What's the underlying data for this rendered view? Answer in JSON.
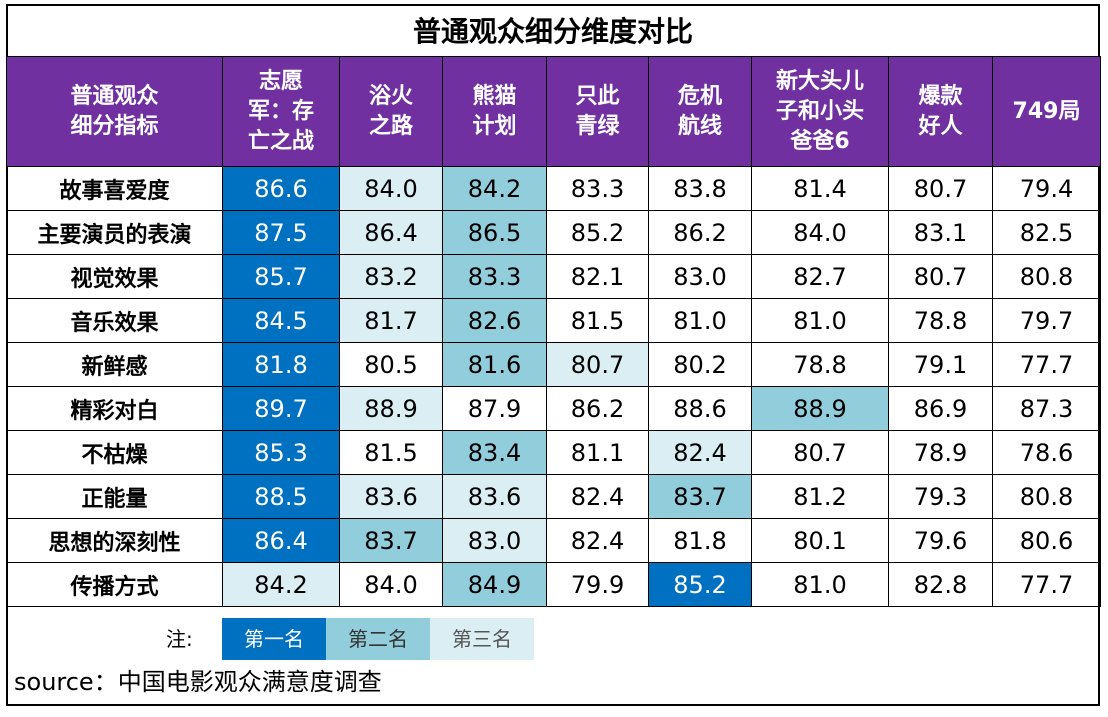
{
  "chart_data": {
    "type": "table",
    "title": "普通观众细分维度对比",
    "corner_header": "普通观众\n细分指标",
    "columns": [
      "志愿\n军：存\n亡之战",
      "浴火\n之路",
      "熊猫\n计划",
      "只此\n青绿",
      "危机\n航线",
      "新大头儿\n子和小头\n爸爸6",
      "爆款\n好人",
      "749局"
    ],
    "rows": [
      {
        "label": "故事喜爱度",
        "values": [
          "86.6",
          "84.0",
          "84.2",
          "83.3",
          "83.8",
          "81.4",
          "80.7",
          "79.4"
        ],
        "ranks": [
          1,
          3,
          2,
          0,
          0,
          0,
          0,
          0
        ]
      },
      {
        "label": "主要演员的表演",
        "values": [
          "87.5",
          "86.4",
          "86.5",
          "85.2",
          "86.2",
          "84.0",
          "83.1",
          "82.5"
        ],
        "ranks": [
          1,
          3,
          2,
          0,
          0,
          0,
          0,
          0
        ]
      },
      {
        "label": "视觉效果",
        "values": [
          "85.7",
          "83.2",
          "83.3",
          "82.1",
          "83.0",
          "82.7",
          "80.7",
          "80.8"
        ],
        "ranks": [
          1,
          3,
          2,
          0,
          0,
          0,
          0,
          0
        ]
      },
      {
        "label": "音乐效果",
        "values": [
          "84.5",
          "81.7",
          "82.6",
          "81.5",
          "81.0",
          "81.0",
          "78.8",
          "79.7"
        ],
        "ranks": [
          1,
          3,
          2,
          0,
          0,
          0,
          0,
          0
        ]
      },
      {
        "label": "新鲜感",
        "values": [
          "81.8",
          "80.5",
          "81.6",
          "80.7",
          "80.2",
          "78.8",
          "79.1",
          "77.7"
        ],
        "ranks": [
          1,
          0,
          2,
          3,
          0,
          0,
          0,
          0
        ]
      },
      {
        "label": "精彩对白",
        "values": [
          "89.7",
          "88.9",
          "87.9",
          "86.2",
          "88.6",
          "88.9",
          "86.9",
          "87.3"
        ],
        "ranks": [
          1,
          3,
          0,
          0,
          0,
          2,
          0,
          0
        ]
      },
      {
        "label": "不枯燥",
        "values": [
          "85.3",
          "81.5",
          "83.4",
          "81.1",
          "82.4",
          "80.7",
          "78.9",
          "78.6"
        ],
        "ranks": [
          1,
          0,
          2,
          0,
          3,
          0,
          0,
          0
        ]
      },
      {
        "label": "正能量",
        "values": [
          "88.5",
          "83.6",
          "83.6",
          "82.4",
          "83.7",
          "81.2",
          "79.3",
          "80.8"
        ],
        "ranks": [
          1,
          3,
          3,
          0,
          2,
          0,
          0,
          0
        ]
      },
      {
        "label": "思想的深刻性",
        "values": [
          "86.4",
          "83.7",
          "83.0",
          "82.4",
          "81.8",
          "80.1",
          "79.6",
          "80.6"
        ],
        "ranks": [
          1,
          2,
          3,
          0,
          0,
          0,
          0,
          0
        ]
      },
      {
        "label": "传播方式",
        "values": [
          "84.2",
          "84.0",
          "84.9",
          "79.9",
          "85.2",
          "81.0",
          "82.8",
          "77.7"
        ],
        "ranks": [
          3,
          0,
          2,
          0,
          1,
          0,
          0,
          0
        ]
      }
    ]
  },
  "legend": {
    "note": "注:",
    "items": [
      "第一名",
      "第二名",
      "第三名"
    ],
    "colors": [
      "#0070c0",
      "#92cddc",
      "#daeef3"
    ]
  },
  "header_color": "#7030a0",
  "source": "source：中国电影观众满意度调查"
}
